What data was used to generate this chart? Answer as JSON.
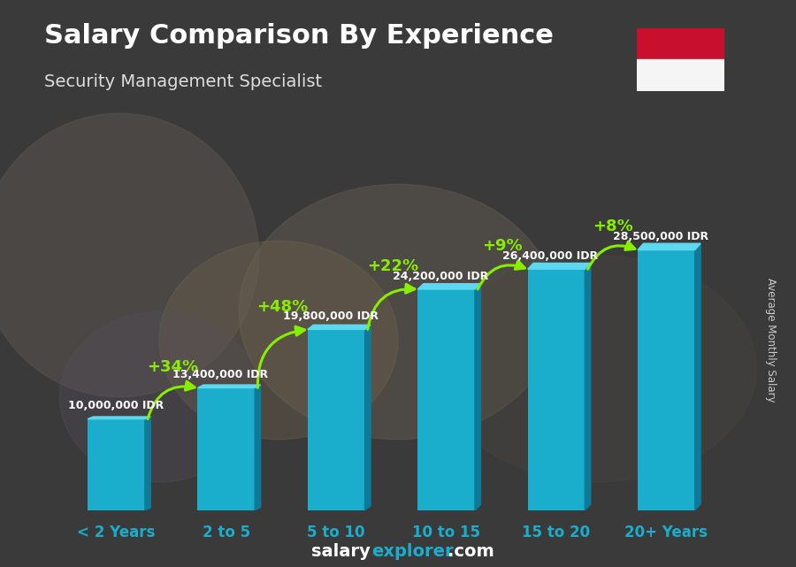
{
  "title": "Salary Comparison By Experience",
  "subtitle": "Security Management Specialist",
  "ylabel": "Average Monthly Salary",
  "categories": [
    "< 2 Years",
    "2 to 5",
    "5 to 10",
    "10 to 15",
    "15 to 20",
    "20+ Years"
  ],
  "values": [
    10000000,
    13400000,
    19800000,
    24200000,
    26400000,
    28500000
  ],
  "labels": [
    "10,000,000 IDR",
    "13,400,000 IDR",
    "19,800,000 IDR",
    "24,200,000 IDR",
    "26,400,000 IDR",
    "28,500,000 IDR"
  ],
  "pct_labels": [
    "+34%",
    "+48%",
    "+22%",
    "+9%",
    "+8%"
  ],
  "bar_face_color": "#1AAECC",
  "bar_right_color": "#0E7A99",
  "bar_top_color": "#5DD8F0",
  "pct_color": "#88EE00",
  "label_color": "#FFFFFF",
  "title_color": "#FFFFFF",
  "subtitle_color": "#DDDDDD",
  "bg_color": "#4a4a4a",
  "footer_color_salary": "#FFFFFF",
  "footer_color_explorer": "#1AAECC",
  "flag_red": "#C8102E",
  "flag_white": "#F5F5F5",
  "ylabel_color": "#CCCCCC",
  "xtick_color": "#1AAECC",
  "ylim": [
    0,
    36000000
  ],
  "bar_width": 0.52
}
